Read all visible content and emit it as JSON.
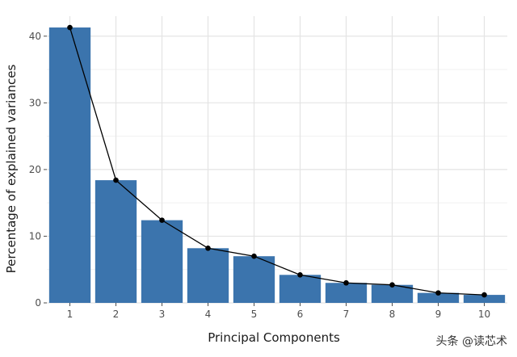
{
  "chart_data": {
    "type": "bar",
    "categories": [
      "1",
      "2",
      "3",
      "4",
      "5",
      "6",
      "7",
      "8",
      "9",
      "10"
    ],
    "series": [
      {
        "type": "bar",
        "values": [
          41.3,
          18.4,
          12.4,
          8.2,
          7.0,
          4.2,
          3.0,
          2.7,
          1.5,
          1.2
        ]
      },
      {
        "type": "line",
        "values": [
          41.3,
          18.4,
          12.4,
          8.2,
          7.0,
          4.2,
          3.0,
          2.7,
          1.5,
          1.2
        ]
      }
    ],
    "xlabel": "Principal Components",
    "ylabel": "Percentage of explained variances",
    "ylim": [
      0,
      43
    ],
    "yticks": [
      0,
      10,
      20,
      30,
      40
    ],
    "grid": true,
    "legend": "none",
    "bar_color": "#3b74ad",
    "line_color": "#000000"
  },
  "watermark": "头条 @读芯术"
}
